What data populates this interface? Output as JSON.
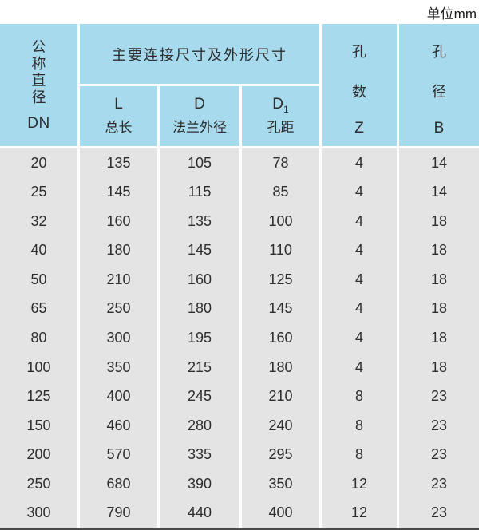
{
  "unit_label": "单位mm",
  "table": {
    "header": {
      "col_dn": {
        "vertical_chars": [
          "公",
          "称",
          "直",
          "径"
        ],
        "code": "DN"
      },
      "group": {
        "title": "主要连接尺寸及外形尺寸",
        "sub_columns": [
          {
            "symbol": "L",
            "sub": "",
            "label": "总长"
          },
          {
            "symbol": "D",
            "sub": "",
            "label": "法兰外径"
          },
          {
            "symbol": "D",
            "sub": "1",
            "label": "孔距"
          }
        ]
      },
      "col_z": {
        "vertical_chars": [
          "孔",
          "数"
        ],
        "code": "Z"
      },
      "col_b": {
        "vertical_chars": [
          "孔",
          "径"
        ],
        "code": "B"
      }
    },
    "rows": [
      [
        20,
        135,
        105,
        78,
        4,
        14
      ],
      [
        25,
        145,
        115,
        85,
        4,
        14
      ],
      [
        32,
        160,
        135,
        100,
        4,
        18
      ],
      [
        40,
        180,
        145,
        110,
        4,
        18
      ],
      [
        50,
        210,
        160,
        125,
        4,
        18
      ],
      [
        65,
        250,
        180,
        145,
        4,
        18
      ],
      [
        80,
        300,
        195,
        160,
        4,
        18
      ],
      [
        100,
        350,
        215,
        180,
        4,
        18
      ],
      [
        125,
        400,
        245,
        210,
        8,
        23
      ],
      [
        150,
        460,
        280,
        240,
        8,
        23
      ],
      [
        200,
        570,
        335,
        295,
        8,
        23
      ],
      [
        250,
        680,
        390,
        350,
        12,
        23
      ],
      [
        300,
        790,
        440,
        400,
        12,
        23
      ]
    ]
  },
  "colors": {
    "header_bg": "#a8daee",
    "body_bg": "#e4e4e4",
    "divider": "#ffffff",
    "text": "#2d2d2d",
    "bottom_line": "#4a4a4a",
    "page_bg": "#ffffff"
  }
}
